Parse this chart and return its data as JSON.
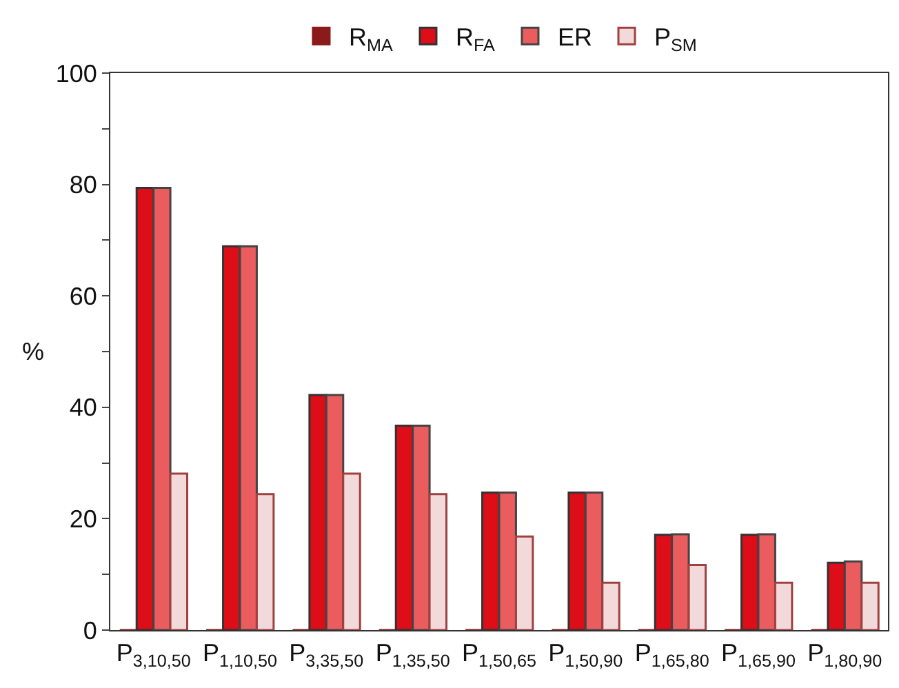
{
  "chart_data": {
    "type": "bar",
    "ylabel": "%",
    "categories": [
      "P$_{3,10,50}$",
      "P$_{1,10,50}$",
      "P$_{3,35,50}$",
      "P$_{1,35,50}$",
      "P$_{1,50,65}$",
      "P$_{1,50,90}$",
      "P$_{1,65,80}$",
      "P$_{1,65,90}$",
      "P$_{1,80,90}$"
    ],
    "series": [
      {
        "name": "R$_{MA}$",
        "color": "#8b1a1a",
        "values": [
          0,
          0,
          0,
          0,
          0,
          0,
          0,
          0,
          0
        ]
      },
      {
        "name": "R$_{FA}$",
        "color": "#dd0e18",
        "values": [
          79.4,
          68.9,
          42.2,
          36.7,
          24.7,
          24.7,
          17.1,
          17.1,
          12.1
        ]
      },
      {
        "name": "ER",
        "color": "#eb5c5f",
        "values": [
          79.4,
          68.9,
          42.2,
          36.7,
          24.7,
          24.7,
          17.2,
          17.2,
          12.3
        ]
      },
      {
        "name": "P$_{SM}$",
        "color": "#f2d9da",
        "values": [
          28.1,
          24.4,
          28.1,
          24.4,
          16.8,
          8.5,
          11.7,
          8.5,
          8.5
        ]
      }
    ],
    "ylim": [
      0,
      100
    ],
    "yticks": [
      0,
      {
        "value": 10,
        "label": null
      },
      20,
      {
        "value": 30,
        "label": null
      },
      40,
      {
        "value": 50,
        "label": null
      },
      60,
      {
        "value": 70,
        "label": null
      },
      80,
      {
        "value": 90,
        "label": null
      },
      100
    ],
    "legend": "top"
  }
}
